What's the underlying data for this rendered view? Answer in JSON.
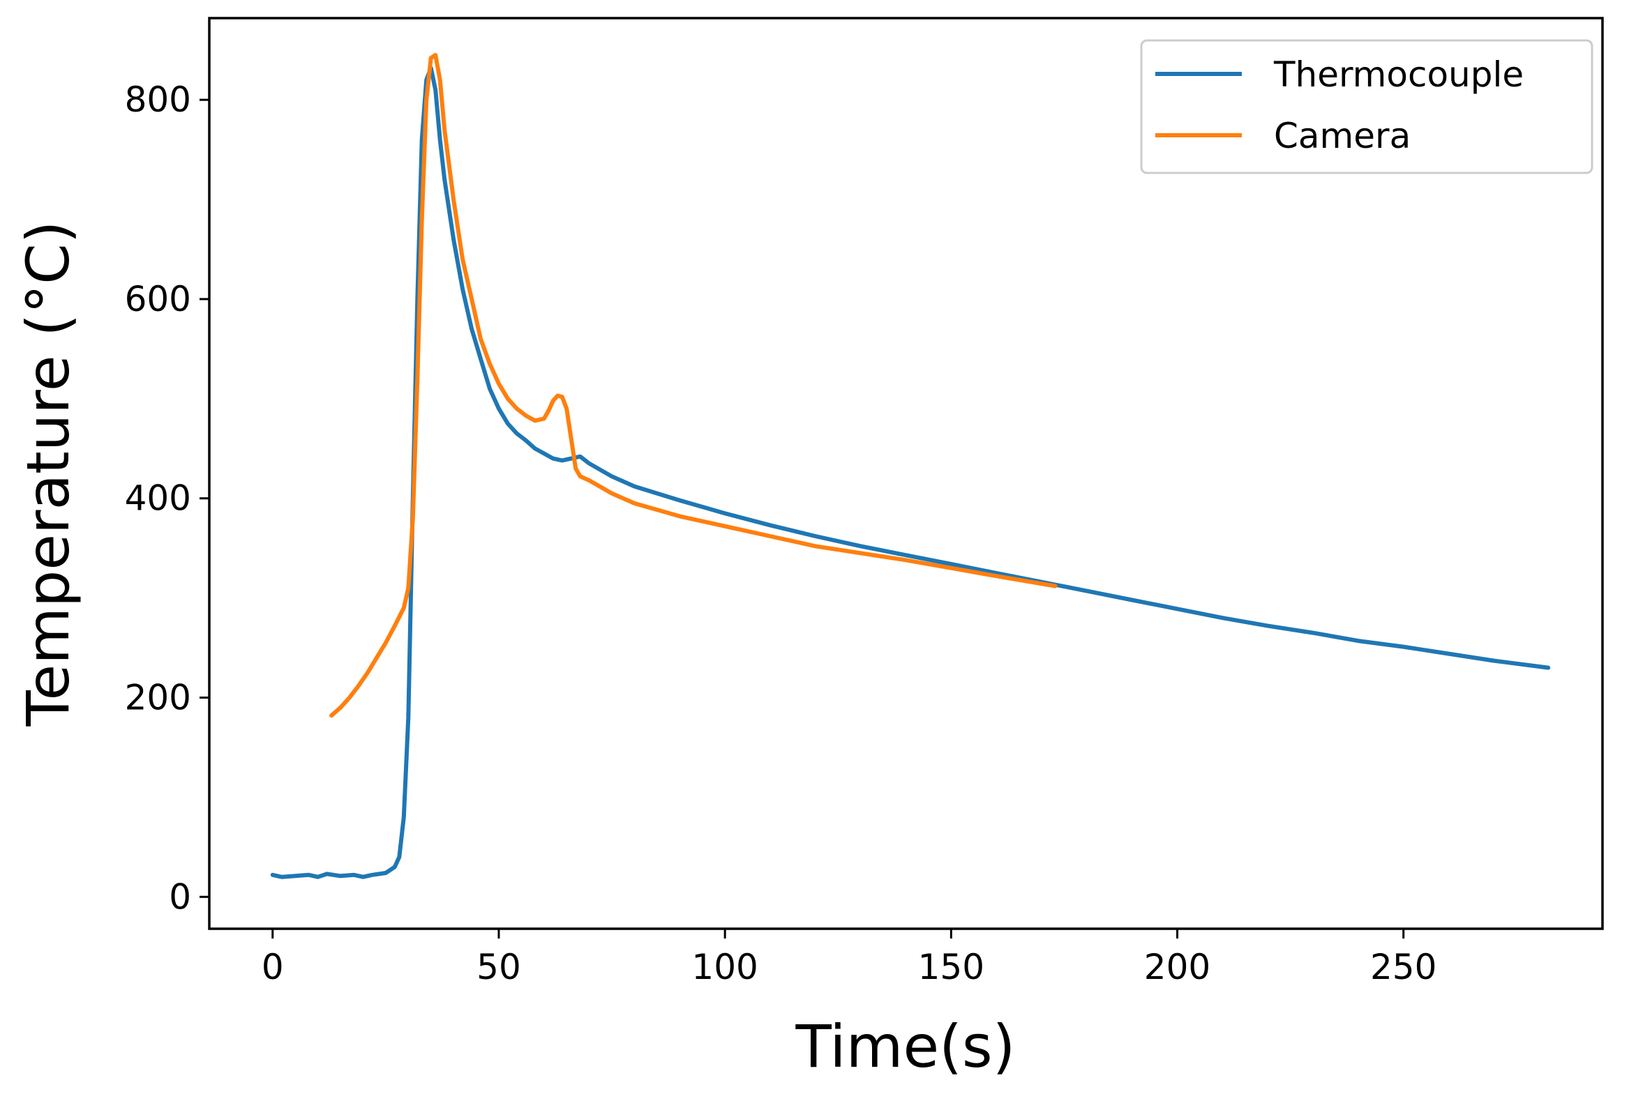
{
  "chart_data": {
    "type": "line",
    "title": "",
    "xlabel": "Time(s)",
    "ylabel": "Temperature (°C)",
    "xlim": [
      -14,
      294
    ],
    "ylim": [
      -32,
      882
    ],
    "xticks": [
      0,
      50,
      100,
      150,
      200,
      250
    ],
    "yticks": [
      0,
      200,
      400,
      600,
      800
    ],
    "grid": false,
    "legend_position": "top-right",
    "series": [
      {
        "name": "Thermocouple",
        "color": "#1f77b4",
        "x": [
          0,
          2,
          5,
          8,
          10,
          12,
          15,
          18,
          20,
          22,
          25,
          27,
          28,
          29,
          30,
          31,
          32,
          33,
          34,
          35,
          36,
          37,
          38,
          40,
          42,
          44,
          46,
          48,
          50,
          52,
          54,
          56,
          58,
          60,
          62,
          64,
          66,
          68,
          70,
          75,
          80,
          90,
          100,
          110,
          120,
          130,
          140,
          150,
          160,
          170,
          180,
          190,
          200,
          210,
          220,
          230,
          240,
          250,
          260,
          270,
          282
        ],
        "y": [
          22,
          20,
          21,
          22,
          20,
          23,
          21,
          22,
          20,
          22,
          24,
          30,
          40,
          80,
          180,
          400,
          600,
          760,
          820,
          832,
          810,
          760,
          720,
          660,
          610,
          570,
          540,
          510,
          490,
          475,
          465,
          458,
          450,
          445,
          440,
          438,
          440,
          442,
          435,
          422,
          412,
          398,
          385,
          373,
          362,
          352,
          343,
          334,
          325,
          316,
          307,
          298,
          289,
          280,
          272,
          265,
          257,
          251,
          244,
          237,
          230
        ]
      },
      {
        "name": "Camera",
        "color": "#ff7f0e",
        "x": [
          13,
          15,
          17,
          19,
          21,
          23,
          25,
          27,
          29,
          30,
          31,
          32,
          33,
          34,
          35,
          36,
          37,
          38,
          40,
          42,
          44,
          46,
          48,
          50,
          52,
          54,
          56,
          58,
          60,
          61,
          62,
          63,
          64,
          65,
          66,
          67,
          68,
          70,
          75,
          80,
          90,
          100,
          110,
          120,
          130,
          140,
          150,
          160,
          173
        ],
        "y": [
          182,
          190,
          200,
          212,
          225,
          240,
          255,
          272,
          290,
          310,
          380,
          520,
          680,
          800,
          842,
          845,
          820,
          770,
          700,
          640,
          600,
          560,
          535,
          515,
          500,
          490,
          483,
          478,
          480,
          488,
          498,
          503,
          502,
          490,
          460,
          430,
          422,
          418,
          405,
          395,
          382,
          372,
          362,
          352,
          345,
          338,
          330,
          322,
          312
        ]
      }
    ]
  }
}
